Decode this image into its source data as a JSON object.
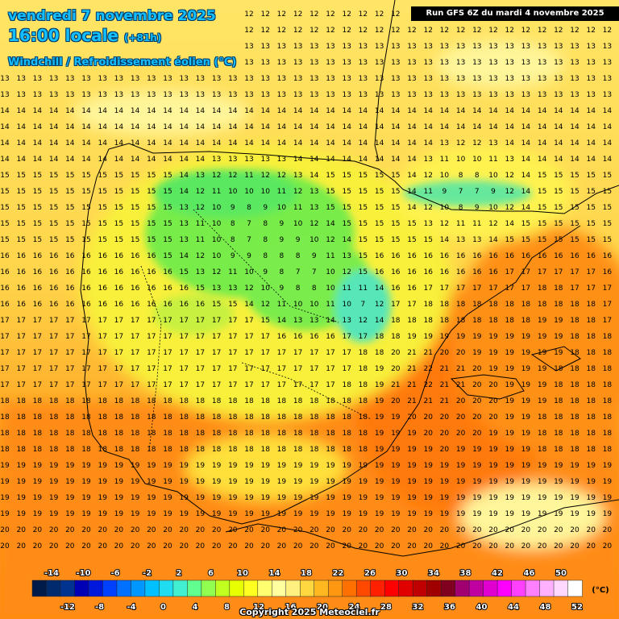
{
  "header": {
    "date": "vendredi 7 novembre 2025",
    "time": "16:00 locale",
    "lead": "(+81h)",
    "variable": "Windchill / Refroidissement éolien (°C)",
    "run": "Run GFS 6Z du mardi 4 novembre 2025"
  },
  "legend": {
    "unit": "(°C)",
    "top_labels": [
      "-14",
      "-10",
      "-6",
      "-2",
      "2",
      "6",
      "10",
      "14",
      "18",
      "22",
      "26",
      "30",
      "34",
      "38",
      "42",
      "46",
      "50"
    ],
    "bottom_labels": [
      "-12",
      "-8",
      "-4",
      "0",
      "4",
      "8",
      "12",
      "16",
      "20",
      "24",
      "28",
      "32",
      "36",
      "40",
      "44",
      "48",
      "52"
    ],
    "colors": [
      "#001a4a",
      "#002a6e",
      "#00338f",
      "#0000b4",
      "#0018dc",
      "#0040ff",
      "#0070ff",
      "#0098ff",
      "#00c0ff",
      "#20dcf0",
      "#40f0d0",
      "#60ff90",
      "#90ff50",
      "#c0ff20",
      "#e8ff00",
      "#ffff20",
      "#ffff70",
      "#ffffa0",
      "#fff080",
      "#ffd840",
      "#ffb820",
      "#ff9810",
      "#ff7000",
      "#ff4800",
      "#ff2000",
      "#ff0000",
      "#e00000",
      "#c00000",
      "#a00000",
      "#800020",
      "#a00070",
      "#c000a0",
      "#e000d0",
      "#ff00ff",
      "#ff40ff",
      "#ff80ff",
      "#ffb0ff",
      "#ffd8ff",
      "#ffffff"
    ]
  },
  "copyright": "Copyright 2025 Meteociel.fr"
}
